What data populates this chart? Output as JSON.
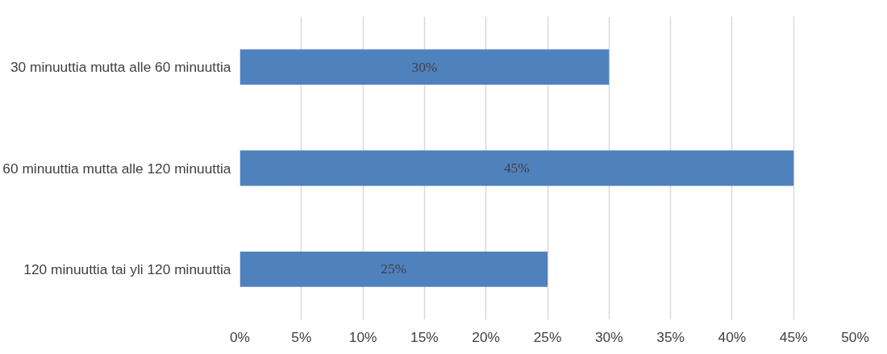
{
  "chart_data": {
    "type": "bar",
    "orientation": "horizontal",
    "categories": [
      "30 minuuttia mutta alle 60 minuuttia",
      "60 minuuttia mutta alle 120 minuuttia",
      "120 minuuttia tai yli 120 minuuttia"
    ],
    "values": [
      30,
      45,
      25
    ],
    "color": "#4f81bd",
    "value_labels": [
      "30%",
      "45%",
      "25%"
    ],
    "xlim": [
      0,
      50
    ],
    "xticks": [
      {
        "value": 0,
        "label": "0%"
      },
      {
        "value": 5,
        "label": "5%"
      },
      {
        "value": 10,
        "label": "10%"
      },
      {
        "value": 15,
        "label": "15%"
      },
      {
        "value": 20,
        "label": "20%"
      },
      {
        "value": 25,
        "label": "25%"
      },
      {
        "value": 30,
        "label": "30%"
      },
      {
        "value": 35,
        "label": "35%"
      },
      {
        "value": 40,
        "label": "40%"
      },
      {
        "value": 45,
        "label": "45%"
      },
      {
        "value": 50,
        "label": "50%"
      }
    ],
    "grid": "x"
  }
}
